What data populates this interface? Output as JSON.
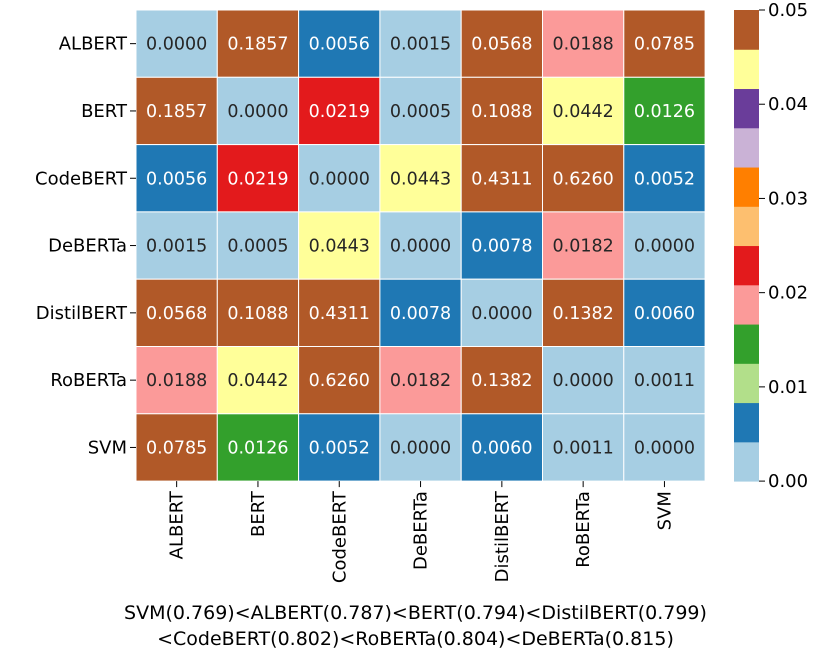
{
  "chart_data": {
    "type": "heatmap",
    "rows": [
      "ALBERT",
      "BERT",
      "CodeBERT",
      "DeBERTa",
      "DistilBERT",
      "RoBERTa",
      "SVM"
    ],
    "cols": [
      "ALBERT",
      "BERT",
      "CodeBERT",
      "DeBERTa",
      "DistilBERT",
      "RoBERTa",
      "SVM"
    ],
    "cells": [
      [
        "0.0000",
        "0.1857",
        "0.0056",
        "0.0015",
        "0.0568",
        "0.0188",
        "0.0785"
      ],
      [
        "0.1857",
        "0.0000",
        "0.0219",
        "0.0005",
        "0.1088",
        "0.0442",
        "0.0126"
      ],
      [
        "0.0056",
        "0.0219",
        "0.0000",
        "0.0443",
        "0.4311",
        "0.6260",
        "0.0052"
      ],
      [
        "0.0015",
        "0.0005",
        "0.0443",
        "0.0000",
        "0.0078",
        "0.0182",
        "0.0000"
      ],
      [
        "0.0568",
        "0.1088",
        "0.4311",
        "0.0078",
        "0.0000",
        "0.1382",
        "0.0060"
      ],
      [
        "0.0188",
        "0.0442",
        "0.6260",
        "0.0182",
        "0.1382",
        "0.0000",
        "0.0011"
      ],
      [
        "0.0785",
        "0.0126",
        "0.0052",
        "0.0000",
        "0.0060",
        "0.0011",
        "0.0000"
      ]
    ],
    "colorbar": {
      "vmin": 0.0,
      "vmax": 0.05,
      "ticks": [
        "0.00",
        "0.01",
        "0.02",
        "0.03",
        "0.04",
        "0.05"
      ],
      "colormap": "Paired",
      "colors": [
        "#a6cee3",
        "#1f78b4",
        "#b2df8a",
        "#33a02c",
        "#fb9a99",
        "#e31a1c",
        "#fdbf6f",
        "#ff7f00",
        "#cab2d6",
        "#6a3d9a",
        "#ffff99",
        "#b15928"
      ]
    },
    "caption_lines": [
      "SVM(0.769)<ALBERT(0.787)<BERT(0.794)<DistilBERT(0.799)",
      "<CodeBERT(0.802)<RoBERTa(0.804)<DeBERTa(0.815)"
    ]
  }
}
